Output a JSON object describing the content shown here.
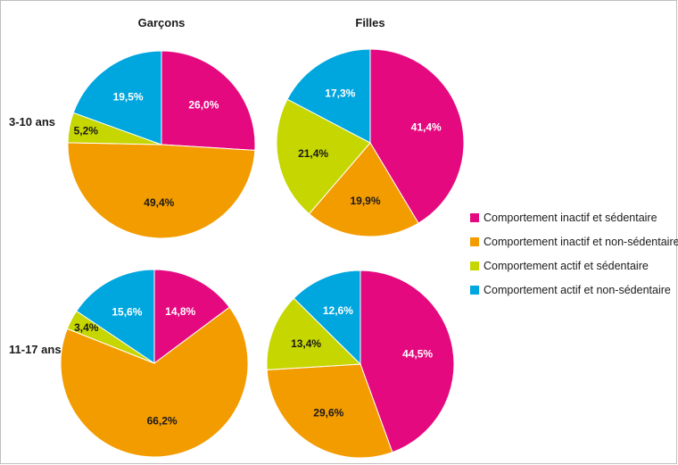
{
  "chart_data": {
    "type": "pie",
    "column_headers": [
      "Garçons",
      "Filles"
    ],
    "row_headers": [
      "3-10 ans",
      "11-17 ans"
    ],
    "legend": [
      {
        "label": "Comportement inactif et sédentaire",
        "color": "#E5097F"
      },
      {
        "label": "Comportement inactif et non-sédentaire",
        "color": "#F39C00"
      },
      {
        "label": "Comportement actif et sédentaire",
        "color": "#C5D600"
      },
      {
        "label": "Comportement actif et non-sédentaire",
        "color": "#00A6DE"
      }
    ],
    "legend_position": "right",
    "pies": [
      {
        "column": "Garçons",
        "row": "3-10 ans",
        "values": [
          26.0,
          49.4,
          5.2,
          19.5
        ],
        "labels": [
          "26,0%",
          "49,4%",
          "5,2%",
          "19,5%"
        ]
      },
      {
        "column": "Filles",
        "row": "3-10 ans",
        "values": [
          41.4,
          19.9,
          21.4,
          17.3
        ],
        "labels": [
          "41,4%",
          "19,9%",
          "21,4%",
          "17,3%"
        ]
      },
      {
        "column": "Garçons",
        "row": "11-17 ans",
        "values": [
          14.8,
          66.2,
          3.4,
          15.6
        ],
        "labels": [
          "14,8%",
          "66,2%",
          "3,4%",
          "15,6%"
        ]
      },
      {
        "column": "Filles",
        "row": "11-17 ans",
        "values": [
          44.5,
          29.6,
          13.4,
          12.6
        ],
        "labels": [
          "44,5%",
          "29,6%",
          "13,4%",
          "12,6%"
        ]
      }
    ]
  }
}
